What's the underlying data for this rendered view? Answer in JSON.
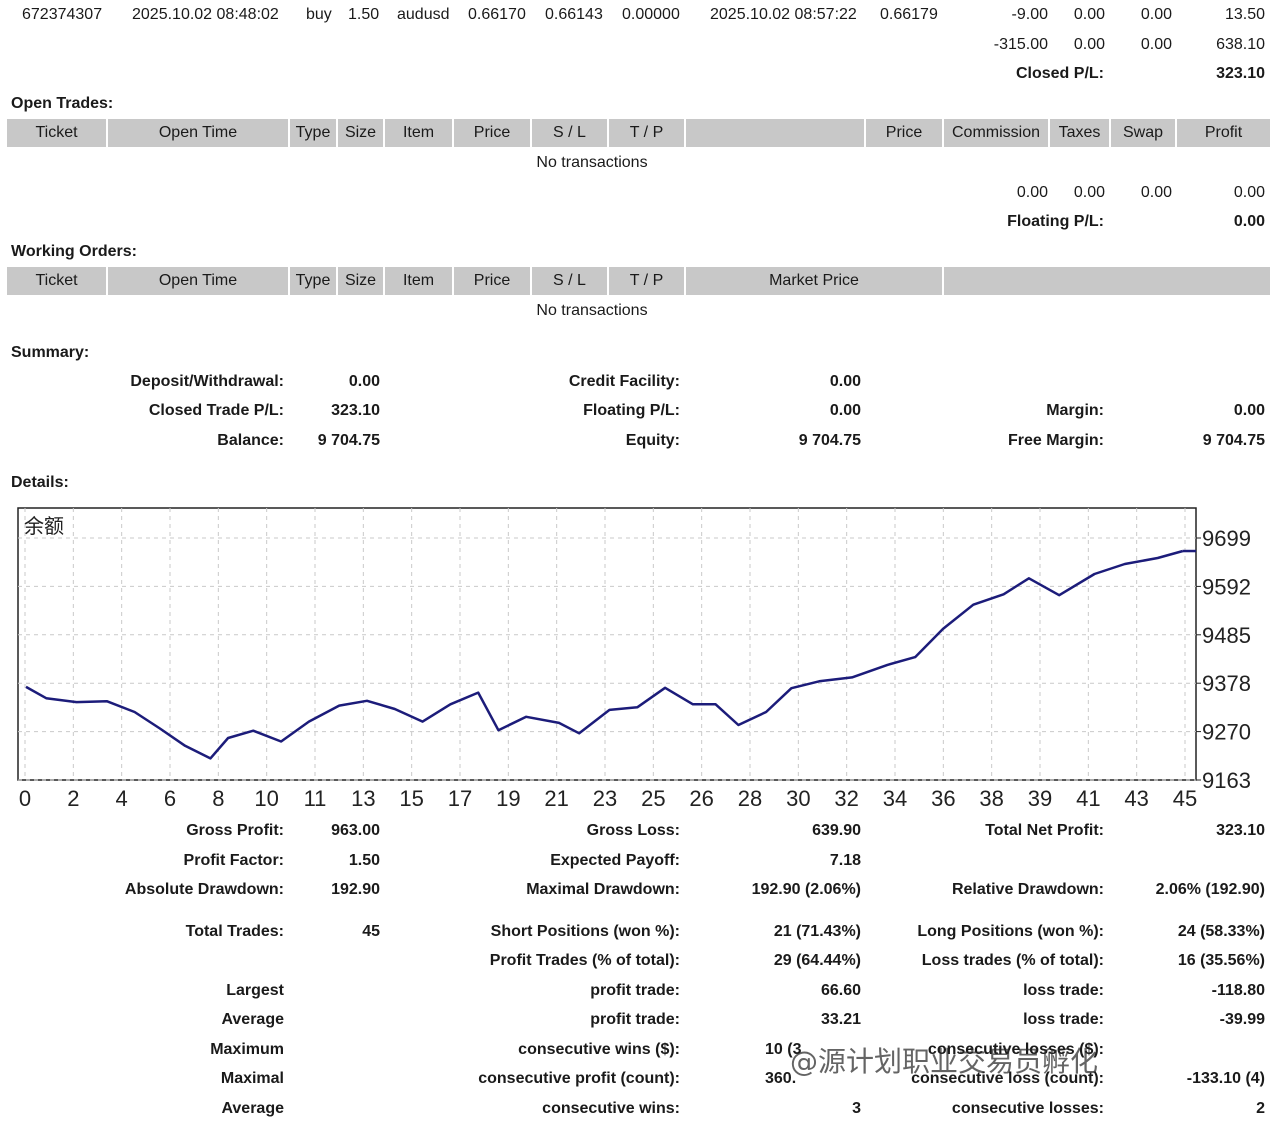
{
  "closed_trade_row": {
    "ticket": "672374307",
    "open_time": "2025.10.02 08:48:02",
    "type": "buy",
    "size": "1.50",
    "item": "audusd",
    "price": "0.66170",
    "sl": "0.66143",
    "tp": "0.00000",
    "close_time": "2025.10.02 08:57:22",
    "close_price": "0.66179",
    "commission": "-9.00",
    "taxes": "0.00",
    "swap": "0.00",
    "profit": "13.50"
  },
  "closed_totals": {
    "commission": "-315.00",
    "taxes": "0.00",
    "swap": "0.00",
    "profit": "638.10",
    "pl_label": "Closed P/L:",
    "pl_value": "323.10"
  },
  "open_trades": {
    "title": "Open Trades:",
    "columns": [
      "Ticket",
      "Open Time",
      "Type",
      "Size",
      "Item",
      "Price",
      "S / L",
      "T / P",
      "",
      "Price",
      "Commission",
      "Taxes",
      "Swap",
      "Profit"
    ],
    "empty_text": "No transactions",
    "totals": {
      "commission": "0.00",
      "taxes": "0.00",
      "swap": "0.00",
      "profit": "0.00"
    },
    "pl_label": "Floating P/L:",
    "pl_value": "0.00"
  },
  "working_orders": {
    "title": "Working Orders:",
    "columns": [
      "Ticket",
      "Open Time",
      "Type",
      "Size",
      "Item",
      "Price",
      "S / L",
      "T / P",
      "Market Price",
      ""
    ],
    "empty_text": "No transactions"
  },
  "summary": {
    "title": "Summary:",
    "deposit_label": "Deposit/Withdrawal:",
    "deposit_value": "0.00",
    "closed_pl_label": "Closed Trade P/L:",
    "closed_pl_value": "323.10",
    "balance_label": "Balance:",
    "balance_value": "9 704.75",
    "credit_label": "Credit Facility:",
    "credit_value": "0.00",
    "floating_label": "Floating P/L:",
    "floating_value": "0.00",
    "equity_label": "Equity:",
    "equity_value": "9 704.75",
    "margin_label": "Margin:",
    "margin_value": "0.00",
    "free_margin_label": "Free Margin:",
    "free_margin_value": "9 704.75"
  },
  "details": {
    "title": "Details:"
  },
  "chart_data": {
    "type": "line",
    "title": "余额",
    "x_tick_labels": [
      "0",
      "2",
      "4",
      "6",
      "8",
      "10",
      "11",
      "13",
      "15",
      "17",
      "19",
      "21",
      "23",
      "25",
      "26",
      "28",
      "30",
      "32",
      "34",
      "36",
      "38",
      "39",
      "41",
      "43",
      "45"
    ],
    "y_tick_labels": [
      "9699",
      "9592",
      "9485",
      "9378",
      "9270",
      "9163"
    ],
    "ylim": [
      9163,
      9699
    ],
    "xlim": [
      0,
      46
    ],
    "grid": true,
    "line_color": "#1c1c7a",
    "series": [
      {
        "x": [
          0,
          0.8,
          2,
          3.2,
          4.3,
          5.3,
          6.3,
          7.3,
          8,
          9,
          10.1,
          11.2,
          12.4,
          13.5,
          14.6,
          15.7,
          16.8,
          17.9,
          18.7,
          19.8,
          21.1,
          21.9,
          23.1,
          24.2,
          25.3,
          26.4,
          27.3,
          28.2,
          29.3,
          30.3,
          31.4,
          32.7,
          34.1,
          35.2,
          36.3,
          37.5,
          38.7,
          39.7,
          40.9,
          42.3,
          43.5,
          44.8,
          45.8
        ],
        "y": [
          9378,
          9352,
          9343,
          9345,
          9320,
          9282,
          9242,
          9213,
          9260,
          9277,
          9252,
          9298,
          9335,
          9346,
          9327,
          9298,
          9338,
          9365,
          9278,
          9309,
          9295,
          9271,
          9325,
          9331,
          9376,
          9338,
          9338,
          9290,
          9320,
          9375,
          9391,
          9400,
          9429,
          9447,
          9512,
          9568,
          9592,
          9629,
          9590,
          9639,
          9662,
          9676,
          9692
        ]
      }
    ]
  },
  "stats": {
    "gross_profit_label": "Gross Profit:",
    "gross_profit_value": "963.00",
    "gross_loss_label": "Gross Loss:",
    "gross_loss_value": "639.90",
    "total_net_profit_label": "Total Net Profit:",
    "total_net_profit_value": "323.10",
    "profit_factor_label": "Profit Factor:",
    "profit_factor_value": "1.50",
    "expected_payoff_label": "Expected Payoff:",
    "expected_payoff_value": "7.18",
    "abs_drawdown_label": "Absolute Drawdown:",
    "abs_drawdown_value": "192.90",
    "max_drawdown_label": "Maximal Drawdown:",
    "max_drawdown_value": "192.90 (2.06%)",
    "rel_drawdown_label": "Relative Drawdown:",
    "rel_drawdown_value": "2.06% (192.90)",
    "total_trades_label": "Total Trades:",
    "total_trades_value": "45",
    "short_label": "Short Positions (won %):",
    "short_value": "21 (71.43%)",
    "long_label": "Long Positions (won %):",
    "long_value": "24 (58.33%)",
    "profit_trades_label": "Profit Trades (% of total):",
    "profit_trades_value": "29 (64.44%)",
    "loss_trades_label": "Loss trades (% of total):",
    "loss_trades_value": "16 (35.56%)",
    "largest_label": "Largest",
    "largest_profit_label": "profit trade:",
    "largest_profit_value": "66.60",
    "largest_loss_label": "loss trade:",
    "largest_loss_value": "-118.80",
    "average_label": "Average",
    "average_profit_label": "profit trade:",
    "average_profit_value": "33.21",
    "average_loss_label": "loss trade:",
    "average_loss_value": "-39.99",
    "maximum_label": "Maximum",
    "max_cons_wins_label": "consecutive wins ($):",
    "max_cons_wins_value": "10 (3",
    "max_cons_loss_label": "consecutive losses ($):",
    "max_cons_loss_value": "",
    "maximal_label": "Maximal",
    "maximal_cons_profit_label": "consecutive profit (count):",
    "maximal_cons_profit_value": "360.",
    "maximal_cons_loss_label": "consecutive loss (count):",
    "maximal_cons_loss_value": "-133.10 (4)",
    "avg2_label": "Average",
    "avg_cons_wins_label": "consecutive wins:",
    "avg_cons_wins_value": "3",
    "avg_cons_losses_label": "consecutive losses:",
    "avg_cons_losses_value": "2"
  },
  "watermark": {
    "text": "@源计划职业交易员孵化"
  }
}
